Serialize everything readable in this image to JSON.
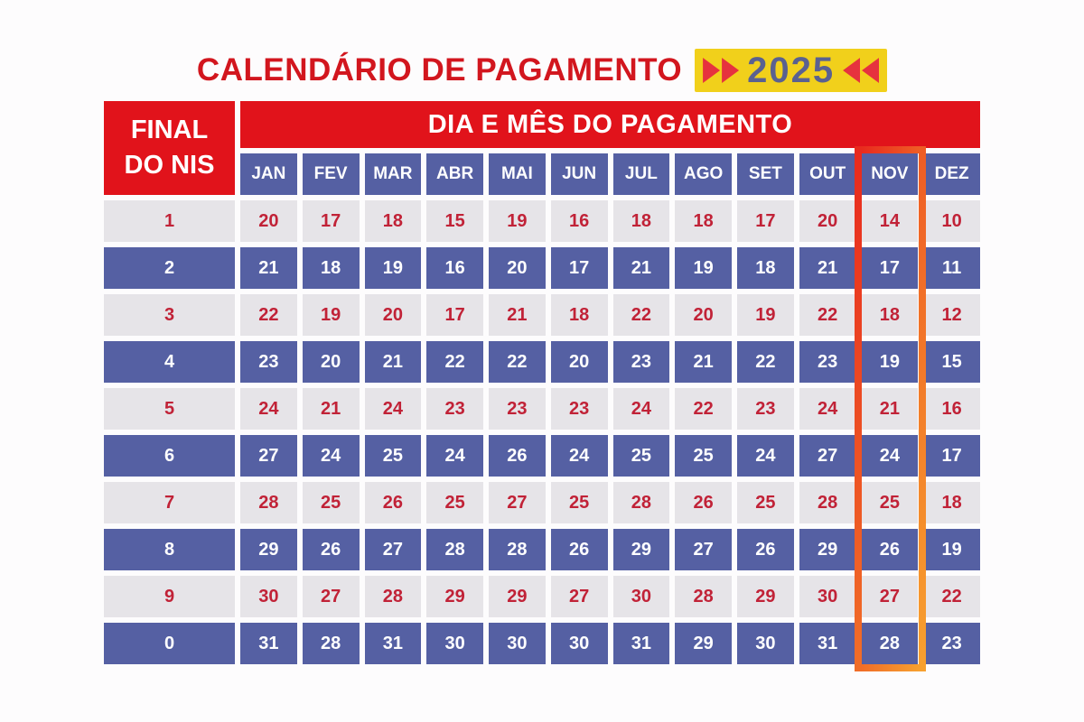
{
  "title": {
    "text": "CALENDÁRIO DE PAGAMENTO",
    "year": "2025"
  },
  "chart_data": {
    "type": "table",
    "title": "CALENDÁRIO DE PAGAMENTO 2025",
    "corner_header": "FINAL DO NIS",
    "column_group_header": "DIA E MÊS DO PAGAMENTO",
    "columns": [
      "JAN",
      "FEV",
      "MAR",
      "ABR",
      "MAI",
      "JUN",
      "JUL",
      "AGO",
      "SET",
      "OUT",
      "NOV",
      "DEZ"
    ],
    "highlighted_column": "NOV",
    "rows": [
      {
        "final": "1",
        "days": [
          20,
          17,
          18,
          15,
          19,
          16,
          18,
          18,
          17,
          20,
          14,
          10
        ]
      },
      {
        "final": "2",
        "days": [
          21,
          18,
          19,
          16,
          20,
          17,
          21,
          19,
          18,
          21,
          17,
          11
        ]
      },
      {
        "final": "3",
        "days": [
          22,
          19,
          20,
          17,
          21,
          18,
          22,
          20,
          19,
          22,
          18,
          12
        ]
      },
      {
        "final": "4",
        "days": [
          23,
          20,
          21,
          22,
          22,
          20,
          23,
          21,
          22,
          23,
          19,
          15
        ]
      },
      {
        "final": "5",
        "days": [
          24,
          21,
          24,
          23,
          23,
          23,
          24,
          22,
          23,
          24,
          21,
          16
        ]
      },
      {
        "final": "6",
        "days": [
          27,
          24,
          25,
          24,
          26,
          24,
          25,
          25,
          24,
          27,
          24,
          17
        ]
      },
      {
        "final": "7",
        "days": [
          28,
          25,
          26,
          25,
          27,
          25,
          28,
          26,
          25,
          28,
          25,
          18
        ]
      },
      {
        "final": "8",
        "days": [
          29,
          26,
          27,
          28,
          28,
          26,
          29,
          27,
          26,
          29,
          26,
          19
        ]
      },
      {
        "final": "9",
        "days": [
          30,
          27,
          28,
          29,
          29,
          27,
          30,
          28,
          29,
          30,
          27,
          22
        ]
      },
      {
        "final": "0",
        "days": [
          31,
          28,
          31,
          30,
          30,
          30,
          31,
          29,
          30,
          31,
          28,
          23
        ]
      }
    ]
  },
  "colors": {
    "title_red": "#d2161e",
    "header_red": "#e1131b",
    "blue": "#5560a3",
    "row_gray": "#e6e4e8",
    "number_red": "#c12237",
    "badge_yellow": "#f1d01b",
    "year_blue": "#5a6190",
    "arrow_red": "#e6323e",
    "hl_start": "#e82a1e",
    "hl_end": "#f7a02f"
  }
}
